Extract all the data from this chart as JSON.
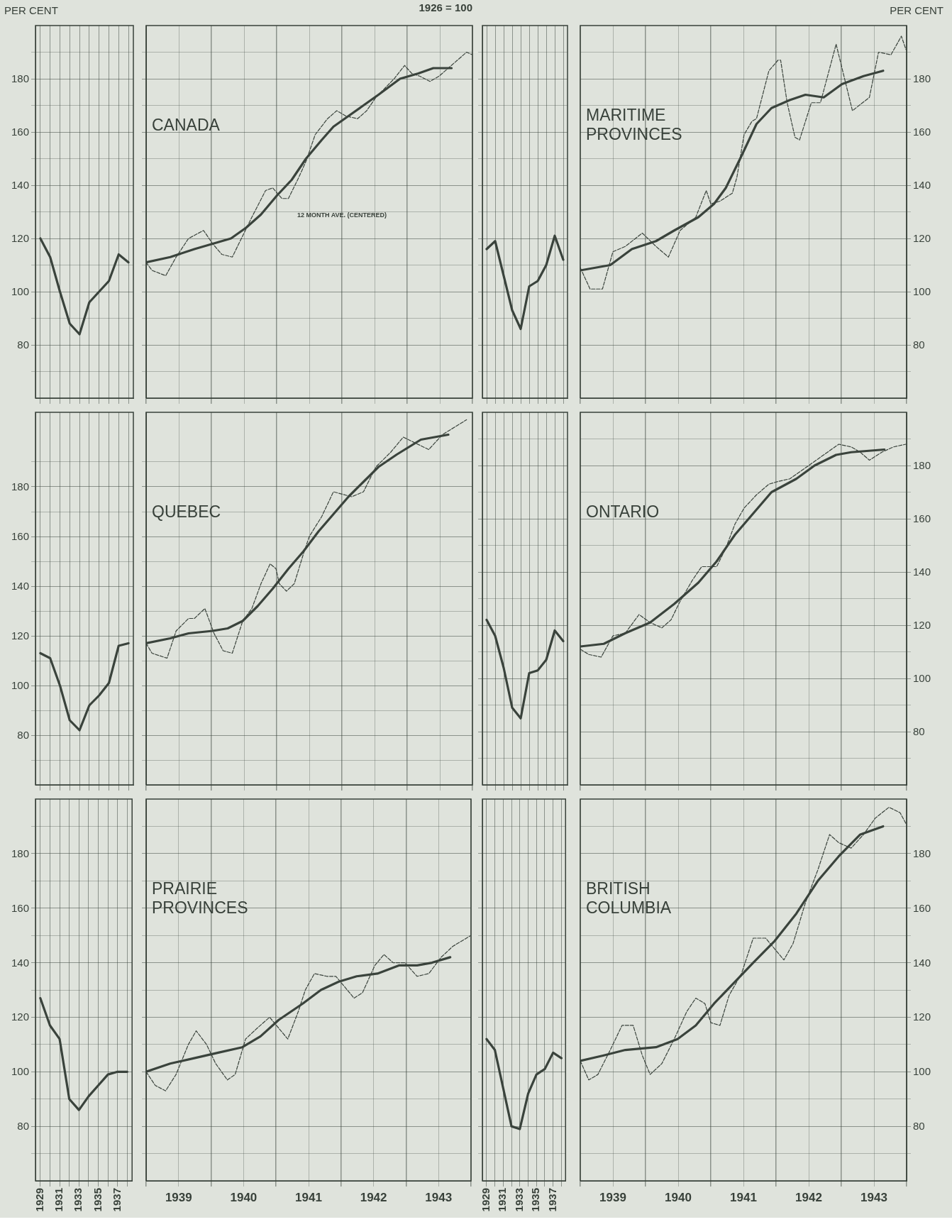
{
  "chart_data": [
    {
      "type": "line",
      "ylabel": "PER CENT",
      "categories": [
        "1929",
        null,
        "1931",
        null,
        "1933",
        null,
        "1935",
        null,
        "1937",
        null
      ],
      "ylim": [
        60,
        200
      ],
      "yticks": [
        {
          "value": 70,
          "label": null
        },
        80,
        {
          "value": 90,
          "label": null
        },
        100,
        {
          "value": 110,
          "label": null
        },
        120,
        {
          "value": 130,
          "label": null
        },
        140,
        {
          "value": 150,
          "label": null
        },
        160,
        {
          "value": 170,
          "label": null
        },
        180,
        {
          "value": 190,
          "label": null
        }
      ],
      "grid": true,
      "tick_labels": "y",
      "series": [
        {
          "color": "#3a433c",
          "values": [
            120,
            113,
            100,
            88,
            84,
            96,
            100,
            104,
            114,
            111
          ]
        }
      ]
    },
    {
      "type": "line",
      "title": "CANADA",
      "subtitle": "1926 = 100",
      "xlim": [
        1939,
        1944
      ],
      "xticks": [
        {
          "value": 1939,
          "label": null
        },
        {
          "value": 1939.5,
          "label": null
        },
        {
          "value": 1940,
          "label": null
        },
        {
          "value": 1940.5,
          "label": null
        },
        {
          "value": 1941,
          "label": null
        },
        {
          "value": 1941.5,
          "label": null
        },
        {
          "value": 1942,
          "label": null
        },
        {
          "value": 1942.5,
          "label": null
        },
        {
          "value": 1943,
          "label": null
        },
        {
          "value": 1943.5,
          "label": null
        },
        {
          "value": 1944,
          "label": null
        }
      ],
      "ylim": [
        60,
        200
      ],
      "yticks": [
        {
          "value": 70,
          "label": null
        },
        {
          "value": 80,
          "label": null
        },
        {
          "value": 90,
          "label": null
        },
        {
          "value": 100,
          "label": null
        },
        {
          "value": 110,
          "label": null
        },
        {
          "value": 120,
          "label": null
        },
        {
          "value": 130,
          "label": null
        },
        {
          "value": 140,
          "label": null
        },
        {
          "value": 150,
          "label": null
        },
        {
          "value": 160,
          "label": null
        },
        {
          "value": 170,
          "label": null
        },
        {
          "value": 180,
          "label": null
        },
        {
          "value": 190,
          "label": null
        }
      ],
      "grid": true,
      "tick_labels": false,
      "annotations": [
        "12 MONTH AVE. (CENTERED)"
      ],
      "series": [
        {
          "color": "#3a433c",
          "line_style": "dashed",
          "x": [
            1939.0,
            1939.09,
            1939.3,
            1939.46,
            1939.65,
            1939.88,
            1940.02,
            1940.16,
            1940.32,
            1940.48,
            1940.62,
            1940.83,
            1940.94,
            1941.08,
            1941.18,
            1941.34,
            1941.45,
            1941.59,
            1941.78,
            1941.92,
            1942.06,
            1942.24,
            1942.38,
            1942.52,
            1942.8,
            1942.96,
            1943.07,
            1943.19,
            1943.35,
            1943.49,
            1943.63,
            1943.91,
            1944.0
          ],
          "values": [
            111,
            108,
            106,
            113,
            120,
            123,
            118,
            114,
            113,
            121,
            128,
            138,
            139,
            135,
            135,
            143,
            149,
            159,
            165,
            168,
            166,
            165,
            168,
            173,
            180,
            185,
            182,
            181,
            179,
            181,
            184,
            190,
            189
          ]
        },
        {
          "color": "#3a433c",
          "x": [
            1939.0,
            1939.37,
            1939.74,
            1940.02,
            1940.3,
            1940.53,
            1940.76,
            1941.0,
            1941.23,
            1941.45,
            1941.69,
            1941.87,
            1942.1,
            1942.33,
            1942.56,
            1942.89,
            1943.17,
            1943.4,
            1943.68
          ],
          "values": [
            111,
            113,
            116,
            118,
            120,
            124,
            129,
            136,
            142,
            150,
            157,
            162,
            166,
            170,
            174,
            180,
            182,
            184,
            184
          ]
        }
      ]
    },
    {
      "type": "line",
      "categories": [
        "1929",
        null,
        "1931",
        null,
        "1933",
        null,
        "1935",
        null,
        "1937",
        null
      ],
      "ylim": [
        60,
        200
      ],
      "yticks": [
        {
          "value": 70,
          "label": null
        },
        {
          "value": 80,
          "label": null
        },
        {
          "value": 90,
          "label": null
        },
        {
          "value": 100,
          "label": null
        },
        {
          "value": 110,
          "label": null
        },
        {
          "value": 120,
          "label": null
        },
        {
          "value": 130,
          "label": null
        },
        {
          "value": 140,
          "label": null
        },
        {
          "value": 150,
          "label": null
        },
        {
          "value": 160,
          "label": null
        },
        {
          "value": 170,
          "label": null
        },
        {
          "value": 180,
          "label": null
        },
        {
          "value": 190,
          "label": null
        }
      ],
      "grid": true,
      "tick_labels": false,
      "series": [
        {
          "color": "#3a433c",
          "values": [
            116,
            119,
            106,
            93,
            86,
            102,
            104,
            110,
            121,
            112
          ]
        }
      ]
    },
    {
      "type": "line",
      "title": "MARITIME PROVINCES",
      "ylabel": "PER CENT",
      "xlim": [
        1939,
        1944
      ],
      "xticks": [
        {
          "value": 1939,
          "label": null
        },
        {
          "value": 1939.5,
          "label": null
        },
        {
          "value": 1940,
          "label": null
        },
        {
          "value": 1940.5,
          "label": null
        },
        {
          "value": 1941,
          "label": null
        },
        {
          "value": 1941.5,
          "label": null
        },
        {
          "value": 1942,
          "label": null
        },
        {
          "value": 1942.5,
          "label": null
        },
        {
          "value": 1943,
          "label": null
        },
        {
          "value": 1943.5,
          "label": null
        },
        {
          "value": 1944,
          "label": null
        }
      ],
      "ylim": [
        60,
        200
      ],
      "yticks": [
        {
          "value": 70,
          "label": null
        },
        80,
        {
          "value": 90,
          "label": null
        },
        100,
        {
          "value": 110,
          "label": null
        },
        120,
        {
          "value": 130,
          "label": null
        },
        140,
        {
          "value": 150,
          "label": null
        },
        160,
        {
          "value": 170,
          "label": null
        },
        180,
        {
          "value": 190,
          "label": null
        }
      ],
      "grid": true,
      "tick_labels": "y",
      "series": [
        {
          "color": "#3a433c",
          "line_style": "dashed",
          "x": [
            1939.0,
            1939.15,
            1939.34,
            1939.5,
            1939.69,
            1939.95,
            1940.16,
            1940.35,
            1940.53,
            1940.77,
            1940.93,
            1941.0,
            1941.14,
            1941.33,
            1941.4,
            1941.51,
            1941.63,
            1941.7,
            1941.89,
            1942.03,
            1942.07,
            1942.17,
            1942.29,
            1942.36,
            1942.54,
            1942.68,
            1942.92,
            1943.01,
            1943.17,
            1943.43,
            1943.57,
            1943.76,
            1943.92,
            1943.99
          ],
          "values": [
            109,
            101,
            101,
            115,
            117,
            122,
            117,
            113,
            123,
            128,
            138,
            133,
            134,
            137,
            143,
            159,
            164,
            165,
            183,
            187,
            187,
            171,
            158,
            157,
            171,
            171,
            193,
            184,
            168,
            173,
            190,
            189,
            196,
            191
          ]
        },
        {
          "color": "#3a433c",
          "x": [
            1939.0,
            1939.46,
            1939.79,
            1940.16,
            1940.44,
            1940.81,
            1941.05,
            1941.23,
            1941.47,
            1941.7,
            1941.93,
            1942.21,
            1942.45,
            1942.73,
            1943.01,
            1943.34,
            1943.64
          ],
          "values": [
            108,
            110,
            116,
            119,
            123,
            128,
            133,
            139,
            151,
            163,
            169,
            172,
            174,
            173,
            178,
            181,
            183
          ]
        }
      ]
    },
    {
      "type": "line",
      "categories": [
        "1929",
        null,
        "1931",
        null,
        "1933",
        null,
        "1935",
        null,
        "1937",
        null
      ],
      "ylim": [
        60,
        210
      ],
      "yticks": [
        {
          "value": 70,
          "label": null
        },
        80,
        {
          "value": 90,
          "label": null
        },
        100,
        {
          "value": 110,
          "label": null
        },
        120,
        {
          "value": 130,
          "label": null
        },
        140,
        {
          "value": 150,
          "label": null
        },
        160,
        {
          "value": 170,
          "label": null
        },
        180,
        {
          "value": 190,
          "label": null
        }
      ],
      "grid": true,
      "tick_labels": "y",
      "series": [
        {
          "color": "#3a433c",
          "values": [
            113,
            111,
            100,
            86,
            82,
            92,
            96,
            101,
            116,
            117
          ]
        }
      ]
    },
    {
      "type": "line",
      "title": "QUEBEC",
      "xlim": [
        1939,
        1944
      ],
      "xticks": [
        {
          "value": 1939,
          "label": null
        },
        {
          "value": 1939.5,
          "label": null
        },
        {
          "value": 1940,
          "label": null
        },
        {
          "value": 1940.5,
          "label": null
        },
        {
          "value": 1941,
          "label": null
        },
        {
          "value": 1941.5,
          "label": null
        },
        {
          "value": 1942,
          "label": null
        },
        {
          "value": 1942.5,
          "label": null
        },
        {
          "value": 1943,
          "label": null
        },
        {
          "value": 1943.5,
          "label": null
        },
        {
          "value": 1944,
          "label": null
        }
      ],
      "ylim": [
        60,
        210
      ],
      "yticks": [
        {
          "value": 70,
          "label": null
        },
        {
          "value": 80,
          "label": null
        },
        {
          "value": 90,
          "label": null
        },
        {
          "value": 100,
          "label": null
        },
        {
          "value": 110,
          "label": null
        },
        {
          "value": 120,
          "label": null
        },
        {
          "value": 130,
          "label": null
        },
        {
          "value": 140,
          "label": null
        },
        {
          "value": 150,
          "label": null
        },
        {
          "value": 160,
          "label": null
        },
        {
          "value": 170,
          "label": null
        },
        {
          "value": 180,
          "label": null
        },
        {
          "value": 190,
          "label": null
        }
      ],
      "grid": true,
      "tick_labels": false,
      "series": [
        {
          "color": "#3a433c",
          "line_style": "dashed",
          "x": [
            1939.0,
            1939.09,
            1939.32,
            1939.46,
            1939.65,
            1939.74,
            1939.9,
            1940.04,
            1940.18,
            1940.32,
            1940.48,
            1940.62,
            1940.76,
            1940.9,
            1940.99,
            1941.04,
            1941.15,
            1941.27,
            1941.41,
            1941.5,
            1941.69,
            1941.87,
            1942.01,
            1942.15,
            1942.33,
            1942.52,
            1942.75,
            1942.94,
            1943.33,
            1943.54,
            1943.91
          ],
          "values": [
            117,
            113,
            111,
            122,
            127,
            127,
            131,
            121,
            114,
            113,
            126,
            131,
            141,
            149,
            147,
            141,
            138,
            141,
            153,
            160,
            168,
            178,
            177,
            176,
            178,
            188,
            194,
            200,
            195,
            201,
            207
          ]
        },
        {
          "color": "#3a433c",
          "x": [
            1939.0,
            1939.37,
            1939.65,
            1940.02,
            1940.25,
            1940.48,
            1940.71,
            1940.94,
            1941.18,
            1941.41,
            1941.64,
            1941.87,
            1942.1,
            1942.33,
            1942.56,
            1942.84,
            1943.21,
            1943.63
          ],
          "values": [
            117,
            119,
            121,
            122,
            123,
            126,
            132,
            139,
            147,
            154,
            162,
            169,
            176,
            182,
            188,
            193,
            199,
            201
          ]
        }
      ]
    },
    {
      "type": "line",
      "categories": [
        "1929",
        null,
        "1931",
        null,
        "1933",
        null,
        "1935",
        null,
        "1937",
        null
      ],
      "ylim": [
        60,
        200
      ],
      "yticks": [
        {
          "value": 70,
          "label": null
        },
        {
          "value": 80,
          "label": null
        },
        {
          "value": 90,
          "label": null
        },
        {
          "value": 100,
          "label": null
        },
        {
          "value": 110,
          "label": null
        },
        {
          "value": 120,
          "label": null
        },
        {
          "value": 130,
          "label": null
        },
        {
          "value": 140,
          "label": null
        },
        {
          "value": 150,
          "label": null
        },
        {
          "value": 160,
          "label": null
        },
        {
          "value": 170,
          "label": null
        },
        {
          "value": 180,
          "label": null
        },
        {
          "value": 190,
          "label": null
        }
      ],
      "grid": true,
      "tick_labels": false,
      "series": [
        {
          "color": "#3a433c",
          "values": [
            122,
            116,
            104,
            89,
            85,
            102,
            103,
            107,
            118,
            114
          ]
        }
      ]
    },
    {
      "type": "line",
      "title": "ONTARIO",
      "xlim": [
        1939,
        1944
      ],
      "xticks": [
        {
          "value": 1939,
          "label": null
        },
        {
          "value": 1939.5,
          "label": null
        },
        {
          "value": 1940,
          "label": null
        },
        {
          "value": 1940.5,
          "label": null
        },
        {
          "value": 1941,
          "label": null
        },
        {
          "value": 1941.5,
          "label": null
        },
        {
          "value": 1942,
          "label": null
        },
        {
          "value": 1942.5,
          "label": null
        },
        {
          "value": 1943,
          "label": null
        },
        {
          "value": 1943.5,
          "label": null
        },
        {
          "value": 1944,
          "label": null
        }
      ],
      "ylim": [
        60,
        200
      ],
      "yticks": [
        {
          "value": 70,
          "label": null
        },
        80,
        {
          "value": 90,
          "label": null
        },
        100,
        {
          "value": 110,
          "label": null
        },
        120,
        {
          "value": 130,
          "label": null
        },
        140,
        {
          "value": 150,
          "label": null
        },
        160,
        {
          "value": 170,
          "label": null
        },
        180,
        {
          "value": 190,
          "label": null
        }
      ],
      "grid": true,
      "tick_labels": "y",
      "series": [
        {
          "color": "#3a433c",
          "line_style": "dashed",
          "x": [
            1939.0,
            1939.13,
            1939.32,
            1939.5,
            1939.69,
            1939.9,
            1940.07,
            1940.25,
            1940.39,
            1940.53,
            1940.72,
            1940.86,
            1941.0,
            1941.09,
            1941.23,
            1941.37,
            1941.51,
            1941.7,
            1941.89,
            1942.03,
            1942.21,
            1942.5,
            1942.73,
            1942.96,
            1943.15,
            1943.29,
            1943.43,
            1943.62,
            1943.8,
            1943.99
          ],
          "values": [
            111,
            109,
            108,
            116,
            117,
            124,
            121,
            119,
            122,
            129,
            137,
            142,
            142,
            142,
            149,
            158,
            164,
            169,
            173,
            174,
            175,
            180,
            184,
            188,
            187,
            185,
            182,
            185,
            187,
            188
          ]
        },
        {
          "color": "#3a433c",
          "x": [
            1939.0,
            1939.36,
            1939.69,
            1940.07,
            1940.44,
            1940.81,
            1941.09,
            1941.37,
            1941.65,
            1941.93,
            1942.31,
            1942.59,
            1942.92,
            1943.15,
            1943.66
          ],
          "values": [
            112,
            113,
            117,
            121,
            128,
            136,
            144,
            154,
            162,
            170,
            175,
            180,
            184,
            185,
            186
          ]
        }
      ]
    },
    {
      "type": "line",
      "categories": [
        "1929",
        null,
        "1931",
        null,
        "1933",
        null,
        "1935",
        null,
        "1937",
        null
      ],
      "ylim": [
        60,
        200
      ],
      "yticks": [
        {
          "value": 70,
          "label": null
        },
        80,
        {
          "value": 90,
          "label": null
        },
        100,
        {
          "value": 110,
          "label": null
        },
        120,
        {
          "value": 130,
          "label": null
        },
        140,
        {
          "value": 150,
          "label": null
        },
        160,
        {
          "value": 170,
          "label": null
        },
        180,
        {
          "value": 190,
          "label": null
        }
      ],
      "grid": true,
      "series": [
        {
          "color": "#3a433c",
          "values": [
            127,
            117,
            112,
            90,
            86,
            91,
            95,
            99,
            100,
            100
          ]
        }
      ]
    },
    {
      "type": "line",
      "title": "PRAIRIE PROVINCES",
      "xlim": [
        1939,
        1944
      ],
      "xticks": [
        {
          "value": 1939,
          "label": null
        },
        {
          "value": 1939.5,
          "label": "1939"
        },
        {
          "value": 1940,
          "label": null
        },
        {
          "value": 1940.5,
          "label": "1940"
        },
        {
          "value": 1941,
          "label": null
        },
        {
          "value": 1941.5,
          "label": "1941"
        },
        {
          "value": 1942,
          "label": null
        },
        {
          "value": 1942.5,
          "label": "1942"
        },
        {
          "value": 1943,
          "label": null
        },
        {
          "value": 1943.5,
          "label": "1943"
        },
        {
          "value": 1944,
          "label": null
        }
      ],
      "ylim": [
        60,
        200
      ],
      "yticks": [
        {
          "value": 70,
          "label": null
        },
        {
          "value": 80,
          "label": null
        },
        {
          "value": 90,
          "label": null
        },
        {
          "value": 100,
          "label": null
        },
        {
          "value": 110,
          "label": null
        },
        {
          "value": 120,
          "label": null
        },
        {
          "value": 130,
          "label": null
        },
        {
          "value": 140,
          "label": null
        },
        {
          "value": 150,
          "label": null
        },
        {
          "value": 160,
          "label": null
        },
        {
          "value": 170,
          "label": null
        },
        {
          "value": 180,
          "label": null
        },
        {
          "value": 190,
          "label": null
        }
      ],
      "grid": true,
      "tick_labels": "x",
      "series": [
        {
          "color": "#3a433c",
          "line_style": "dashed",
          "x": [
            1939.0,
            1939.14,
            1939.3,
            1939.46,
            1939.65,
            1939.77,
            1939.93,
            1940.07,
            1940.25,
            1940.37,
            1940.53,
            1940.71,
            1940.9,
            1941.04,
            1941.18,
            1941.34,
            1941.45,
            1941.59,
            1941.78,
            1941.92,
            1942.06,
            1942.2,
            1942.33,
            1942.52,
            1942.66,
            1942.8,
            1942.98,
            1943.17,
            1943.35,
            1943.54,
            1943.72,
            1944.0
          ],
          "values": [
            100,
            95,
            93,
            99,
            110,
            115,
            110,
            103,
            97,
            99,
            112,
            116,
            120,
            116,
            112,
            122,
            130,
            136,
            135,
            135,
            131,
            127,
            129,
            139,
            143,
            140,
            140,
            135,
            136,
            142,
            146,
            150
          ]
        },
        {
          "color": "#3a433c",
          "x": [
            1939.0,
            1939.37,
            1939.74,
            1940.11,
            1940.48,
            1940.76,
            1941.04,
            1941.41,
            1941.69,
            1941.96,
            1942.24,
            1942.56,
            1942.89,
            1943.17,
            1943.4,
            1943.68
          ],
          "values": [
            100,
            103,
            105,
            107,
            109,
            113,
            119,
            125,
            130,
            133,
            135,
            136,
            139,
            139,
            140,
            142
          ]
        }
      ]
    },
    {
      "type": "line",
      "categories": [
        "1929",
        null,
        "1931",
        null,
        "1933",
        null,
        "1935",
        null,
        "1937",
        null
      ],
      "ylim": [
        60,
        200
      ],
      "yticks": [
        {
          "value": 70,
          "label": null
        },
        {
          "value": 80,
          "label": null
        },
        {
          "value": 90,
          "label": null
        },
        {
          "value": 100,
          "label": null
        },
        {
          "value": 110,
          "label": null
        },
        {
          "value": 120,
          "label": null
        },
        {
          "value": 130,
          "label": null
        },
        {
          "value": 140,
          "label": null
        },
        {
          "value": 150,
          "label": null
        },
        {
          "value": 160,
          "label": null
        },
        {
          "value": 170,
          "label": null
        },
        {
          "value": 180,
          "label": null
        },
        {
          "value": 190,
          "label": null
        }
      ],
      "grid": true,
      "tick_labels": "x",
      "series": [
        {
          "color": "#3a433c",
          "values": [
            112,
            108,
            94,
            80,
            79,
            92,
            99,
            101,
            107,
            105
          ]
        }
      ]
    },
    {
      "type": "line",
      "title": "BRITISH COLUMBIA",
      "xlim": [
        1939,
        1944
      ],
      "xticks": [
        {
          "value": 1939,
          "label": null
        },
        {
          "value": 1939.5,
          "label": "1939"
        },
        {
          "value": 1940,
          "label": null
        },
        {
          "value": 1940.5,
          "label": "1940"
        },
        {
          "value": 1941,
          "label": null
        },
        {
          "value": 1941.5,
          "label": "1941"
        },
        {
          "value": 1942,
          "label": null
        },
        {
          "value": 1942.5,
          "label": "1942"
        },
        {
          "value": 1943,
          "label": null
        },
        {
          "value": 1943.5,
          "label": "1943"
        },
        {
          "value": 1944,
          "label": null
        }
      ],
      "ylim": [
        60,
        200
      ],
      "yticks": [
        {
          "value": 70,
          "label": null
        },
        80,
        {
          "value": 90,
          "label": null
        },
        100,
        {
          "value": 110,
          "label": null
        },
        120,
        {
          "value": 130,
          "label": null
        },
        140,
        {
          "value": 150,
          "label": null
        },
        160,
        {
          "value": 170,
          "label": null
        },
        180,
        {
          "value": 190,
          "label": null
        }
      ],
      "grid": true,
      "series": [
        {
          "color": "#3a433c",
          "line_style": "dashed",
          "x": [
            1939.0,
            1939.13,
            1939.27,
            1939.46,
            1939.64,
            1939.81,
            1939.95,
            1940.07,
            1940.25,
            1940.44,
            1940.63,
            1940.77,
            1940.91,
            1941.0,
            1941.14,
            1941.28,
            1941.47,
            1941.65,
            1941.84,
            1941.98,
            1942.12,
            1942.26,
            1942.45,
            1942.64,
            1942.82,
            1942.96,
            1943.15,
            1943.34,
            1943.52,
            1943.73,
            1943.9,
            1943.99
          ],
          "values": [
            104,
            97,
            99,
            108,
            117,
            117,
            106,
            99,
            103,
            112,
            122,
            127,
            125,
            118,
            117,
            128,
            136,
            149,
            149,
            145,
            141,
            147,
            162,
            174,
            187,
            184,
            182,
            187,
            193,
            197,
            195,
            191
          ]
        },
        {
          "color": "#3a433c",
          "x": [
            1939.0,
            1939.36,
            1939.69,
            1940.16,
            1940.49,
            1940.77,
            1941.05,
            1941.33,
            1941.65,
            1941.98,
            1942.31,
            1942.64,
            1942.96,
            1943.29,
            1943.64
          ],
          "values": [
            104,
            106,
            108,
            109,
            112,
            117,
            125,
            132,
            140,
            148,
            158,
            170,
            179,
            187,
            190
          ]
        }
      ]
    }
  ]
}
